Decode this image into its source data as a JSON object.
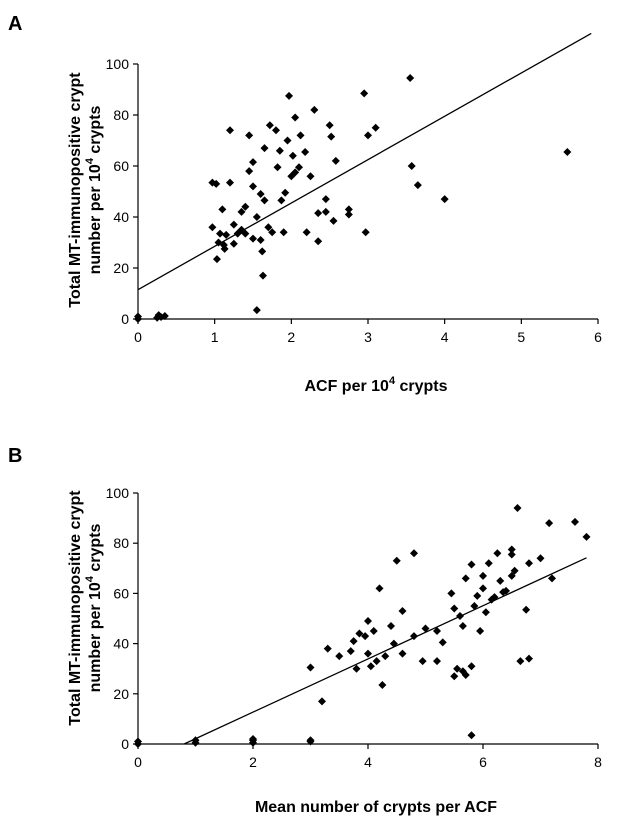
{
  "chart_data": [
    {
      "panel_label": "A",
      "type": "scatter",
      "xlabel_main": "ACF per 10",
      "xlabel_sup": "4",
      "xlabel_tail": " crypts",
      "ylabel_line1": "Total MT-immunopositive crypt",
      "ylabel_line2_main": "number per 10",
      "ylabel_line2_sup": "4",
      "ylabel_line2_tail": " crypts",
      "xlim": [
        0,
        6
      ],
      "ylim": [
        0,
        100
      ],
      "xticks": [
        0,
        1,
        2,
        3,
        4,
        5,
        6
      ],
      "yticks": [
        0,
        20,
        40,
        60,
        80,
        100
      ],
      "trendline": {
        "slope": 17.0,
        "intercept": 11.5
      },
      "points": [
        [
          0,
          0
        ],
        [
          0,
          1
        ],
        [
          0.25,
          0.5
        ],
        [
          0.27,
          1.5
        ],
        [
          0.3,
          0.8
        ],
        [
          0.35,
          1.2
        ],
        [
          0.97,
          53.5
        ],
        [
          1.02,
          53
        ],
        [
          0.97,
          36
        ],
        [
          1.03,
          23.5
        ],
        [
          1.05,
          30
        ],
        [
          1.07,
          33.5
        ],
        [
          1.1,
          43
        ],
        [
          1.12,
          29
        ],
        [
          1.13,
          27.5
        ],
        [
          1.15,
          33
        ],
        [
          1.2,
          74
        ],
        [
          1.2,
          53.5
        ],
        [
          1.25,
          37
        ],
        [
          1.25,
          29.5
        ],
        [
          1.3,
          33.5
        ],
        [
          1.35,
          35
        ],
        [
          1.35,
          42
        ],
        [
          1.4,
          44
        ],
        [
          1.4,
          33.5
        ],
        [
          1.45,
          58
        ],
        [
          1.45,
          72
        ],
        [
          1.5,
          61.5
        ],
        [
          1.5,
          52
        ],
        [
          1.5,
          31.5
        ],
        [
          1.55,
          3.5
        ],
        [
          1.55,
          40
        ],
        [
          1.6,
          49
        ],
        [
          1.6,
          31
        ],
        [
          1.62,
          26.5
        ],
        [
          1.63,
          17
        ],
        [
          1.65,
          46.5
        ],
        [
          1.65,
          67
        ],
        [
          1.7,
          36
        ],
        [
          1.72,
          76
        ],
        [
          1.75,
          34
        ],
        [
          1.8,
          74
        ],
        [
          1.82,
          59.5
        ],
        [
          1.85,
          66
        ],
        [
          1.87,
          46.5
        ],
        [
          1.9,
          34
        ],
        [
          1.92,
          49.5
        ],
        [
          1.95,
          70
        ],
        [
          1.97,
          87.5
        ],
        [
          2.0,
          56
        ],
        [
          2.02,
          64
        ],
        [
          2.05,
          79
        ],
        [
          2.05,
          57.5
        ],
        [
          2.1,
          59.5
        ],
        [
          2.12,
          72
        ],
        [
          2.18,
          65.5
        ],
        [
          2.2,
          34
        ],
        [
          2.25,
          56
        ],
        [
          2.3,
          82
        ],
        [
          2.35,
          30.5
        ],
        [
          2.35,
          41.5
        ],
        [
          2.45,
          47
        ],
        [
          2.45,
          42
        ],
        [
          2.5,
          76
        ],
        [
          2.52,
          71.5
        ],
        [
          2.55,
          38.5
        ],
        [
          2.58,
          62
        ],
        [
          2.75,
          41
        ],
        [
          2.75,
          43
        ],
        [
          2.95,
          88.5
        ],
        [
          2.97,
          34
        ],
        [
          3.0,
          72
        ],
        [
          3.1,
          75
        ],
        [
          3.55,
          94.5
        ],
        [
          3.57,
          60
        ],
        [
          3.65,
          52.5
        ],
        [
          4.0,
          47
        ],
        [
          5.6,
          65.5
        ]
      ]
    },
    {
      "panel_label": "B",
      "type": "scatter",
      "xlabel_main": "Mean number of crypts per ACF",
      "ylabel_line1": "Total MT-immunopositive crypt",
      "ylabel_line2_main": "number per 10",
      "ylabel_line2_sup": "4",
      "ylabel_line2_tail": " crypts",
      "xlim": [
        0,
        8
      ],
      "ylim": [
        0,
        100
      ],
      "xticks": [
        0,
        2,
        4,
        6,
        8
      ],
      "yticks": [
        0,
        20,
        40,
        60,
        80,
        100
      ],
      "trendline": {
        "slope": 10.6,
        "intercept": -8.5
      },
      "points": [
        [
          0,
          0
        ],
        [
          0,
          1
        ],
        [
          1,
          0.5
        ],
        [
          1,
          1.5
        ],
        [
          2,
          0.5
        ],
        [
          2,
          1.5
        ],
        [
          2,
          2
        ],
        [
          3,
          1
        ],
        [
          3,
          1.5
        ],
        [
          3,
          30.5
        ],
        [
          3.2,
          17
        ],
        [
          3.3,
          38
        ],
        [
          3.5,
          35
        ],
        [
          3.7,
          37
        ],
        [
          3.75,
          41
        ],
        [
          3.8,
          30
        ],
        [
          3.85,
          44
        ],
        [
          3.95,
          43
        ],
        [
          4.0,
          36
        ],
        [
          4.0,
          49
        ],
        [
          4.05,
          31
        ],
        [
          4.1,
          45
        ],
        [
          4.15,
          33
        ],
        [
          4.2,
          62
        ],
        [
          4.25,
          23.5
        ],
        [
          4.3,
          35
        ],
        [
          4.4,
          47
        ],
        [
          4.45,
          40
        ],
        [
          4.5,
          73
        ],
        [
          4.6,
          36
        ],
        [
          4.6,
          53
        ],
        [
          4.8,
          76
        ],
        [
          4.8,
          43
        ],
        [
          4.95,
          33
        ],
        [
          5.0,
          46
        ],
        [
          5.2,
          33
        ],
        [
          5.2,
          45
        ],
        [
          5.3,
          40.5
        ],
        [
          5.45,
          60
        ],
        [
          5.5,
          54
        ],
        [
          5.5,
          27
        ],
        [
          5.55,
          30
        ],
        [
          5.6,
          51
        ],
        [
          5.65,
          47
        ],
        [
          5.65,
          29
        ],
        [
          5.7,
          27.5
        ],
        [
          5.7,
          66
        ],
        [
          5.8,
          71.5
        ],
        [
          5.8,
          31
        ],
        [
          5.8,
          3.5
        ],
        [
          5.85,
          55
        ],
        [
          5.9,
          59
        ],
        [
          5.95,
          45
        ],
        [
          6.0,
          62
        ],
        [
          6.0,
          67
        ],
        [
          6.05,
          52.5
        ],
        [
          6.1,
          72
        ],
        [
          6.15,
          57.5
        ],
        [
          6.2,
          58.5
        ],
        [
          6.25,
          76
        ],
        [
          6.3,
          65
        ],
        [
          6.35,
          60.5
        ],
        [
          6.4,
          61
        ],
        [
          6.5,
          67
        ],
        [
          6.5,
          75.5
        ],
        [
          6.5,
          77.5
        ],
        [
          6.55,
          69
        ],
        [
          6.6,
          94
        ],
        [
          6.65,
          33
        ],
        [
          6.75,
          53.5
        ],
        [
          6.8,
          72
        ],
        [
          6.8,
          34
        ],
        [
          7.0,
          74
        ],
        [
          7.15,
          88
        ],
        [
          7.2,
          66
        ],
        [
          7.6,
          88.5
        ],
        [
          7.8,
          82.5
        ]
      ]
    }
  ]
}
